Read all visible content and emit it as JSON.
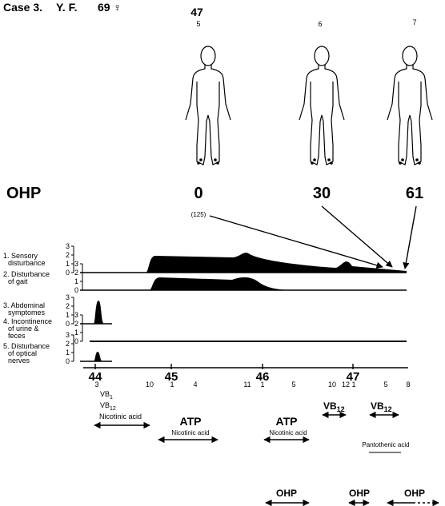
{
  "header": {
    "case": "Case 3.",
    "patient": "Y. F.",
    "age": "69 ♀"
  },
  "figures": {
    "year": "47",
    "months": [
      "5",
      "6",
      "7"
    ],
    "label": "OHP",
    "values": [
      "0",
      "30",
      "61"
    ],
    "note": "(125)"
  },
  "tracks": [
    {
      "label": [
        "1. Sensory",
        "disturbance"
      ],
      "ticks": [
        "3",
        "2",
        "1",
        "0"
      ]
    },
    {
      "label": [
        "2. Disturbance",
        "of gait"
      ],
      "ticks": [
        "3",
        "2",
        "1",
        "0"
      ]
    },
    {
      "label": [
        "3. Abdominal",
        "symptomes"
      ],
      "ticks": [
        "3",
        "2",
        "1",
        "0"
      ]
    },
    {
      "label": [
        "4. Incontinence",
        "of urine &",
        "feces"
      ],
      "ticks": [
        "3",
        "2",
        "1",
        "0"
      ]
    },
    {
      "label": [
        "5. Disturbance",
        "of optical",
        "nerves"
      ],
      "ticks": [
        "3",
        "2",
        "1",
        "0"
      ]
    }
  ],
  "timeline": {
    "years": [
      "44",
      "45",
      "46",
      "47"
    ],
    "months": [
      "3",
      "10",
      "1",
      "4",
      "11",
      "1",
      "5",
      "10",
      "12",
      "1",
      "5",
      "8"
    ]
  },
  "drugs": {
    "vb1": {
      "base": "VB",
      "sub": "1"
    },
    "vb12_a": {
      "base": "VB",
      "sub": "12"
    },
    "nicotinic_a": "Nicotinic acid",
    "atp_a": "ATP",
    "nicotinic_b": "Nicotinic acid",
    "atp_b": "ATP",
    "nicotinic_c": "Nicotinic acid",
    "vb12_b": {
      "base": "VB",
      "sub": "12"
    },
    "vb12_c": {
      "base": "VB",
      "sub": "12"
    },
    "pantothenic": "Pantothenic acid",
    "ohp": [
      "OHP",
      "OHP",
      "OHP"
    ]
  }
}
